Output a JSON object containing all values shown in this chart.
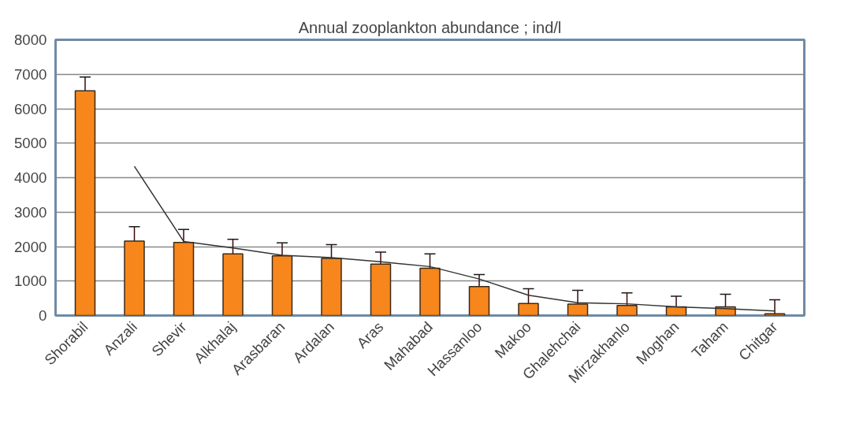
{
  "chart_data": {
    "type": "bar",
    "title": "Annual zooplankton abundance ; ind/l",
    "categories": [
      "Shorabil",
      "Anzali",
      "Shevir",
      "Alkhalaj",
      "Arasbaran",
      "Ardalan",
      "Aras",
      "Mahabad",
      "Hassanloo",
      "Makoo",
      "Ghalehchai",
      "Mirzakhanlo",
      "Moghan",
      "Taham",
      "Chitgar"
    ],
    "series": [
      {
        "color": "#f7861c",
        "values": [
          6520,
          2160,
          2120,
          1790,
          1730,
          1660,
          1490,
          1370,
          840,
          350,
          330,
          290,
          250,
          250,
          50
        ],
        "errors": [
          400,
          420,
          380,
          420,
          380,
          400,
          350,
          420,
          350,
          430,
          400,
          370,
          310,
          370,
          410
        ]
      },
      {
        "type": "line",
        "color": "#333333",
        "values": [
          null,
          4330,
          2150,
          1960,
          1750,
          1680,
          1560,
          1420,
          1060,
          590,
          370,
          340,
          250,
          200,
          130
        ]
      }
    ],
    "ylim": [
      0,
      8000
    ],
    "yticks": [
      0,
      1000,
      2000,
      3000,
      4000,
      5000,
      6000,
      7000,
      8000
    ],
    "grid": "y"
  }
}
